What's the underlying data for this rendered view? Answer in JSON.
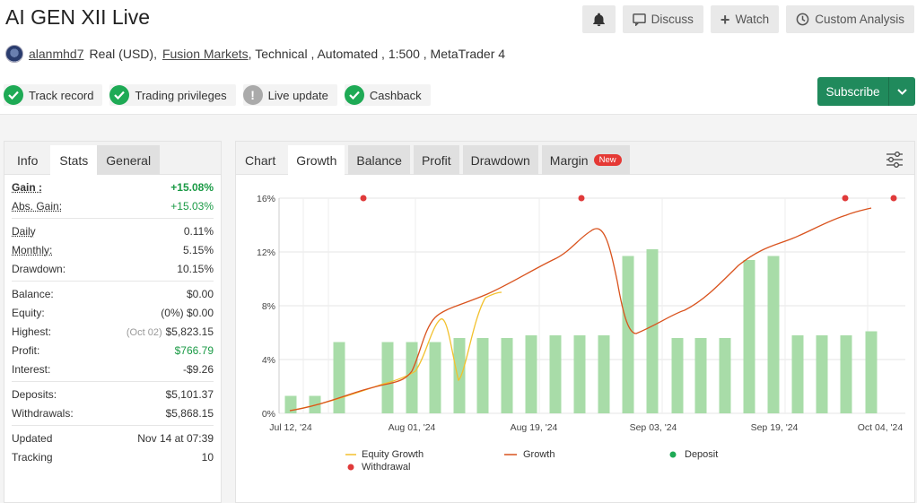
{
  "header": {
    "title": "AI GEN XII Live",
    "buttons": {
      "discuss": "Discuss",
      "watch": "Watch",
      "analysis": "Custom Analysis"
    },
    "account": {
      "user": "alanmhd7",
      "type": "Real (USD),",
      "broker": "Fusion Markets",
      "details": ", Technical , Automated , 1:500 , MetaTrader 4"
    },
    "badges": [
      {
        "label": "Track record",
        "state": "ok"
      },
      {
        "label": "Trading privileges",
        "state": "ok"
      },
      {
        "label": "Live update",
        "state": "warn"
      },
      {
        "label": "Cashback",
        "state": "ok"
      }
    ],
    "subscribe": "Subscribe"
  },
  "left": {
    "tabs": [
      "Info",
      "Stats",
      "General"
    ],
    "stats": {
      "gain_k": "Gain :",
      "gain_v": "+15.08%",
      "abs_k": "Abs. Gain:",
      "abs_v": "+15.03%",
      "daily_k": "Daily",
      "daily_v": "0.11%",
      "monthly_k": "Monthly:",
      "monthly_v": "5.15%",
      "dd_k": "Drawdown:",
      "dd_v": "10.15%",
      "bal_k": "Balance:",
      "bal_v": "$0.00",
      "eq_k": "Equity:",
      "eq_v": "(0%) $0.00",
      "hi_k": "Highest:",
      "hi_sub": "(Oct 02)",
      "hi_v": "$5,823.15",
      "pr_k": "Profit:",
      "pr_v": "$766.79",
      "in_k": "Interest:",
      "in_v": "-$9.26",
      "dep_k": "Deposits:",
      "dep_v": "$5,101.37",
      "wd_k": "Withdrawals:",
      "wd_v": "$5,868.15",
      "up_k": "Updated",
      "up_v": "Nov 14 at 07:39",
      "tr_k": "Tracking",
      "tr_v": "10"
    }
  },
  "right": {
    "tabs": [
      "Chart",
      "Growth",
      "Balance",
      "Profit",
      "Drawdown",
      "Margin"
    ],
    "new_badge": "New"
  },
  "colors": {
    "green": "#1a9a45",
    "growth": "#d9531e",
    "equity": "#f2c12e",
    "bar": "#a8dca8",
    "withdrawal": "#e03a3a",
    "deposit": "#1eaa55"
  },
  "chart_data": {
    "type": "bar",
    "ylim": [
      0,
      16
    ],
    "yticks": [
      "0%",
      "4%",
      "8%",
      "12%",
      "16%"
    ],
    "xticks": [
      "Jul 12, '24",
      "Aug 01, '24",
      "Aug 19, '24",
      "Sep 03, '24",
      "Sep 19, '24",
      "Oct 04, '24"
    ],
    "bars": [
      1.3,
      1.3,
      5.3,
      5.3,
      5.3,
      5.3,
      5.6,
      5.6,
      5.6,
      5.8,
      5.8,
      5.8,
      5.8,
      11.7,
      12.2,
      5.6,
      5.6,
      5.6,
      11.4,
      11.7,
      5.8,
      5.8,
      5.8,
      6.1
    ],
    "withdrawal_markers_y": 16,
    "legend": [
      "Equity Growth",
      "Growth",
      "Deposit",
      "Withdrawal"
    ]
  }
}
